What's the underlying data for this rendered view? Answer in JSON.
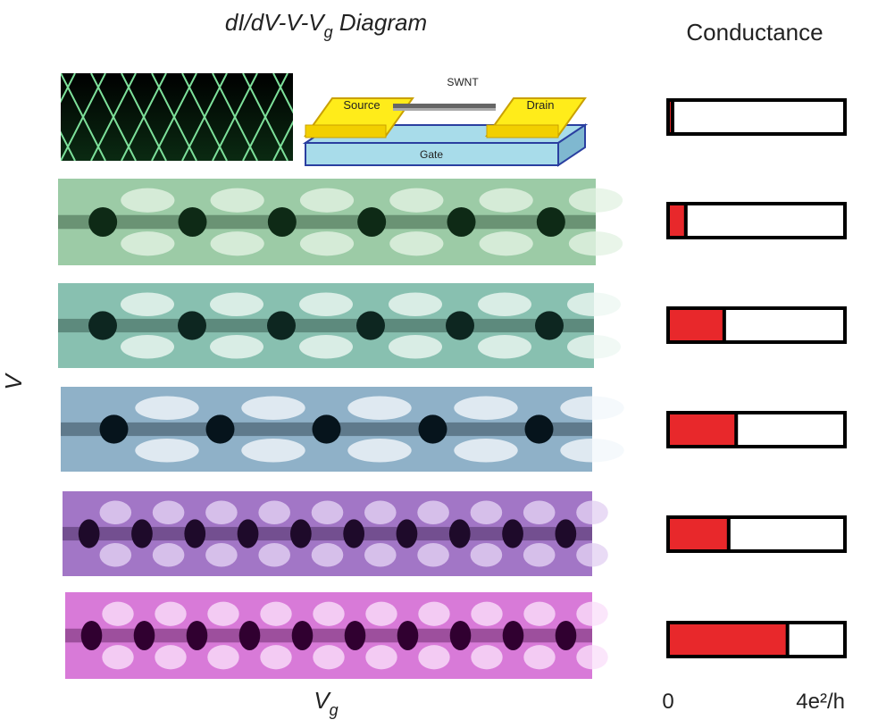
{
  "figure": {
    "title": {
      "main": "dI/dV-V-V",
      "sub": "g",
      "end": " Diagram"
    },
    "y_label": "V",
    "x_label": {
      "main": "V",
      "sub": "g"
    },
    "device": {
      "tube": "SWNT",
      "source": "Source",
      "drain": "Drain",
      "gate": "Gate"
    }
  },
  "chart_data": {
    "type": "bar",
    "orientation": "horizontal",
    "title": "Conductance",
    "values": [
      0.1,
      0.4,
      1.27,
      1.54,
      1.37,
      2.7
    ],
    "color": "#e8282b",
    "xlim": [
      0,
      4
    ],
    "xticks": [
      0,
      {
        "value": 4,
        "label": "4e²/h"
      }
    ]
  }
}
